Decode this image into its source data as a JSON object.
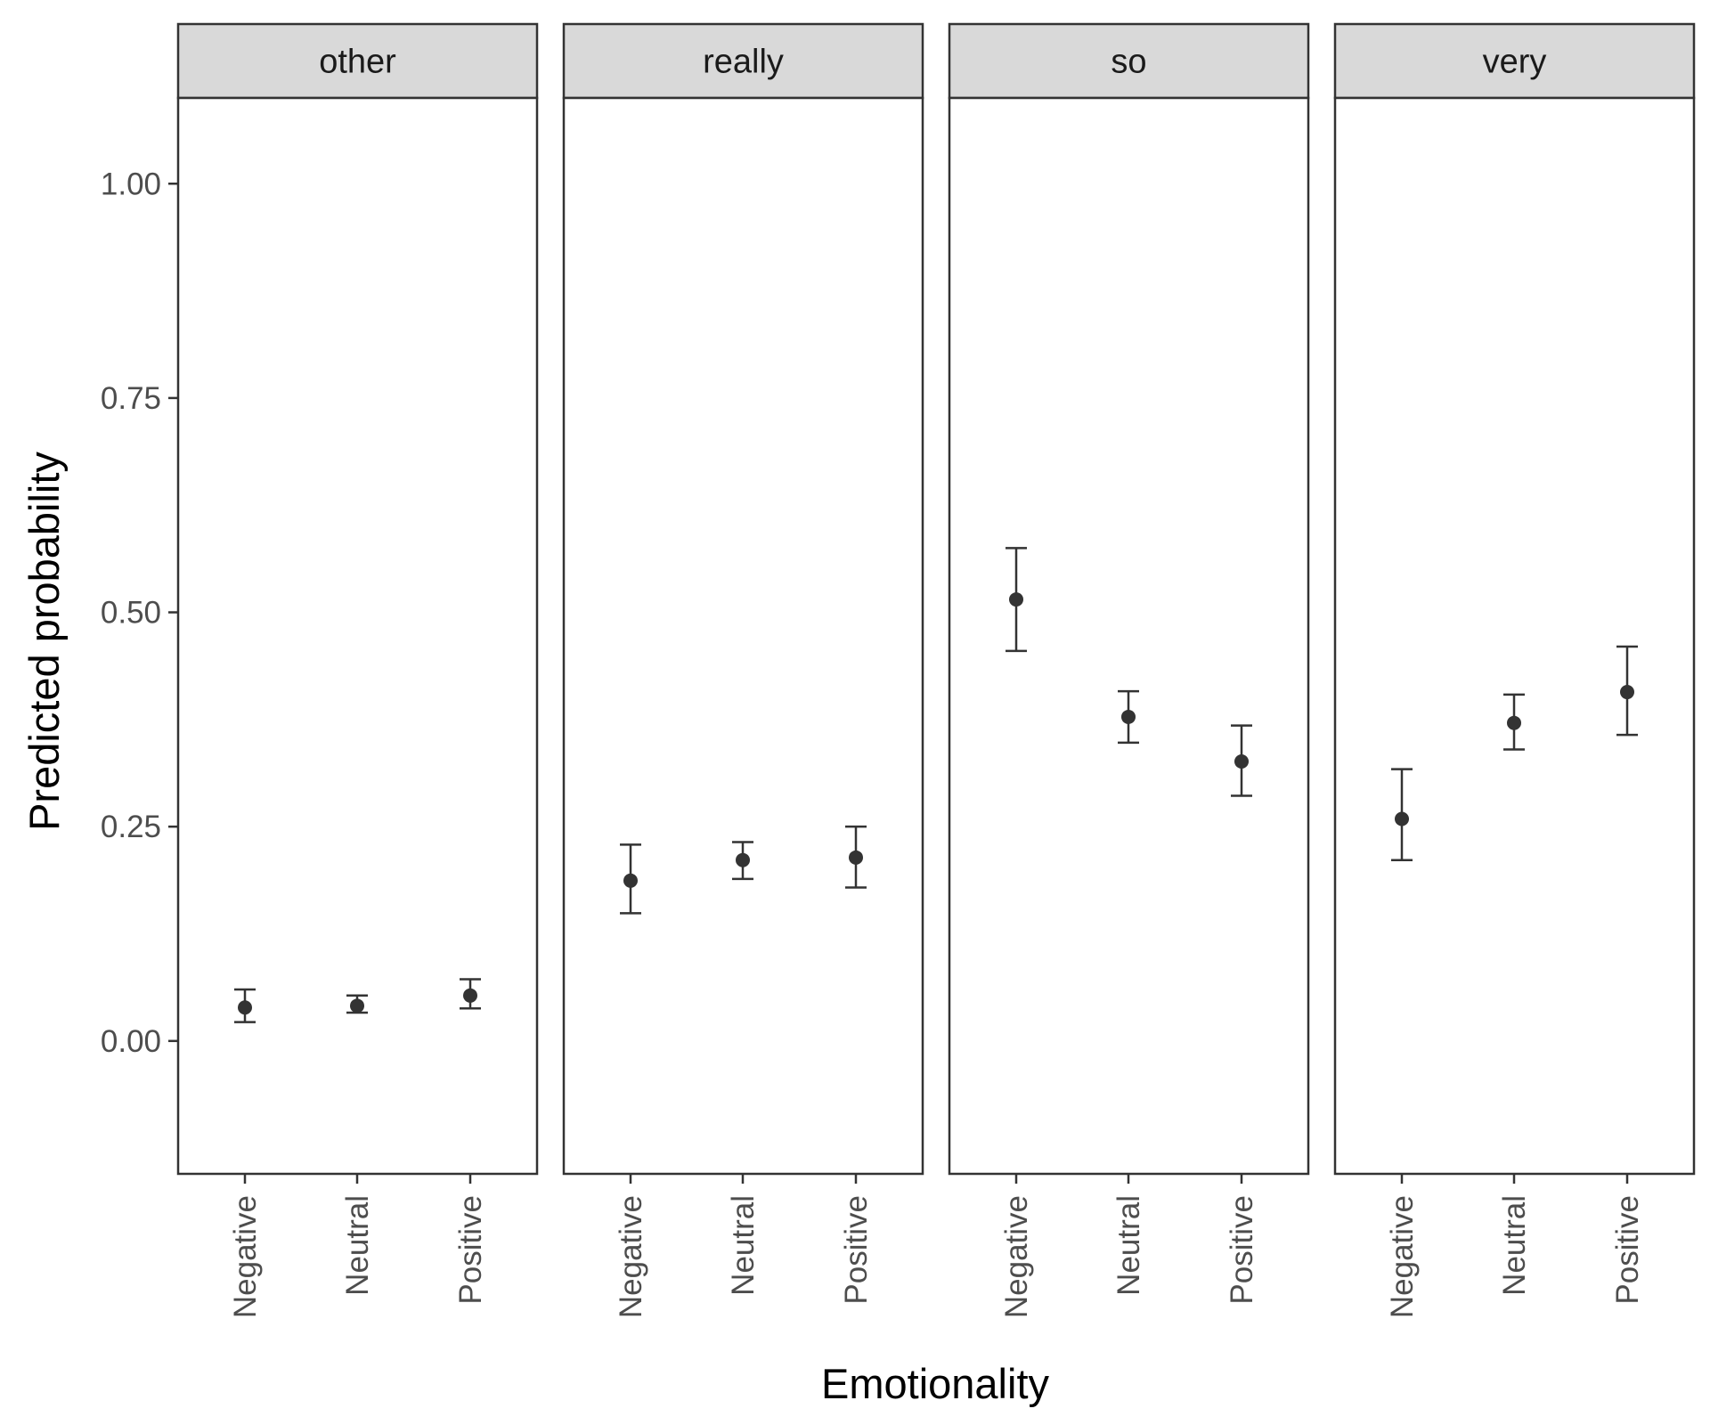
{
  "chart_data": {
    "type": "scatter",
    "subtype": "faceted point estimates with error bars",
    "xlabel": "Emotionality",
    "ylabel": "Predicted probability",
    "ylim": [
      -0.155,
      1.1
    ],
    "yticks": [
      {
        "value": 0.0,
        "label": "0.00"
      },
      {
        "value": 0.25,
        "label": "0.25"
      },
      {
        "value": 0.5,
        "label": "0.50"
      },
      {
        "value": 0.75,
        "label": "0.75"
      },
      {
        "value": 1.0,
        "label": "1.00"
      }
    ],
    "categories": [
      "Negative",
      "Neutral",
      "Positive"
    ],
    "grid": false,
    "legend": "none",
    "facets": [
      {
        "label": "other",
        "points": [
          {
            "category": "Negative",
            "value": 0.039,
            "lower": 0.022,
            "upper": 0.06
          },
          {
            "category": "Neutral",
            "value": 0.041,
            "lower": 0.033,
            "upper": 0.053
          },
          {
            "category": "Positive",
            "value": 0.053,
            "lower": 0.038,
            "upper": 0.072
          }
        ]
      },
      {
        "label": "really",
        "points": [
          {
            "category": "Negative",
            "value": 0.187,
            "lower": 0.149,
            "upper": 0.229
          },
          {
            "category": "Neutral",
            "value": 0.211,
            "lower": 0.189,
            "upper": 0.232
          },
          {
            "category": "Positive",
            "value": 0.214,
            "lower": 0.179,
            "upper": 0.25
          }
        ]
      },
      {
        "label": "so",
        "points": [
          {
            "category": "Negative",
            "value": 0.515,
            "lower": 0.455,
            "upper": 0.575
          },
          {
            "category": "Neutral",
            "value": 0.378,
            "lower": 0.348,
            "upper": 0.408
          },
          {
            "category": "Positive",
            "value": 0.326,
            "lower": 0.286,
            "upper": 0.368
          }
        ]
      },
      {
        "label": "very",
        "points": [
          {
            "category": "Negative",
            "value": 0.259,
            "lower": 0.211,
            "upper": 0.317
          },
          {
            "category": "Neutral",
            "value": 0.371,
            "lower": 0.34,
            "upper": 0.404
          },
          {
            "category": "Positive",
            "value": 0.407,
            "lower": 0.357,
            "upper": 0.46
          }
        ]
      }
    ],
    "colors": {
      "point": "#333333",
      "errorbar": "#333333",
      "panel_border": "#333333",
      "strip_fill": "#d9d9d9",
      "tick_label": "#4d4d4d",
      "axis_title": "#000000"
    }
  }
}
